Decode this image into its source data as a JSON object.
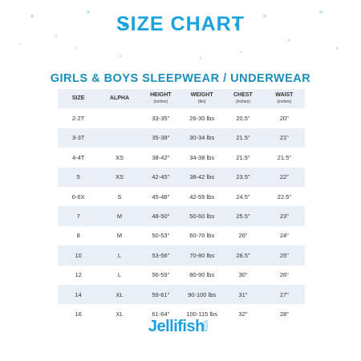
{
  "header": {
    "title": "SIZE CHART",
    "subtitle": "GIRLS & BOYS SLEEPWEAR / UNDERWEAR"
  },
  "table": {
    "columns": [
      {
        "name": "SIZE"
      },
      {
        "name": "ALPHA"
      },
      {
        "name": "HEIGHT",
        "unit": "(inches)"
      },
      {
        "name": "WEIGHT",
        "unit": "(lbs)"
      },
      {
        "name": "CHEST",
        "unit": "(inches)"
      },
      {
        "name": "WAIST",
        "unit": "(inches)"
      }
    ],
    "rows": [
      [
        "2-2T",
        "",
        "33-35\"",
        "26-30 lbs",
        "20.5\"",
        "20\""
      ],
      [
        "3-3T",
        "",
        "35-38\"",
        "30-34 lbs",
        "21.5\"",
        "21\""
      ],
      [
        "4-4T",
        "XS",
        "38-42\"",
        "34-38 lbs",
        "21.5\"",
        "21.5\""
      ],
      [
        "5",
        "XS",
        "42-45\"",
        "38-42 lbs",
        "23.5\"",
        "22\""
      ],
      [
        "6-6X",
        "S",
        "45-48\"",
        "42-55 lbs",
        "24.5\"",
        "22.5\""
      ],
      [
        "7",
        "M",
        "48-50\"",
        "50-60 lbs",
        "25.5\"",
        "23\""
      ],
      [
        "8",
        "M",
        "50-53\"",
        "60-70 lbs",
        "26\"",
        "24\""
      ],
      [
        "10",
        "L",
        "53-56\"",
        "70-80 lbs",
        "28.5\"",
        "25\""
      ],
      [
        "12",
        "L",
        "56-59\"",
        "80-90 lbs",
        "30\"",
        "26\""
      ],
      [
        "14",
        "XL",
        "59-61\"",
        "90-100 lbs",
        "31\"",
        "27\""
      ],
      [
        "16",
        "XL",
        "61-64\"",
        "100-115 lbs",
        "32\"",
        "28\""
      ]
    ]
  },
  "footer": {
    "brand": "Jellifish",
    "sub": "KIDS"
  }
}
